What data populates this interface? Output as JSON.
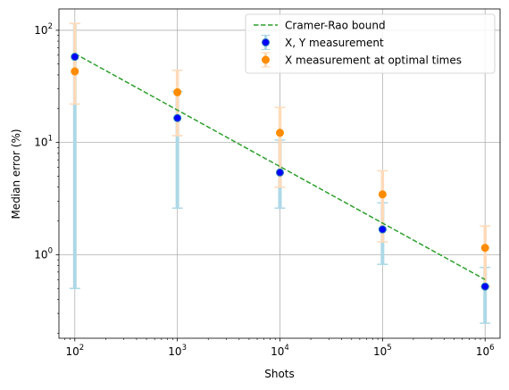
{
  "chart_data": {
    "type": "scatter",
    "xlabel": "Shots",
    "ylabel": "Median error (%)",
    "xscale": "log",
    "yscale": "log",
    "xlim": [
      70,
      1400000
    ],
    "ylim": [
      0.18,
      155
    ],
    "grid": true,
    "legend_position": "upper right",
    "x_ticks": [
      {
        "value": 100,
        "base": "10",
        "exp": "2"
      },
      {
        "value": 1000,
        "base": "10",
        "exp": "3"
      },
      {
        "value": 10000,
        "base": "10",
        "exp": "4"
      },
      {
        "value": 100000,
        "base": "10",
        "exp": "5"
      },
      {
        "value": 1000000,
        "base": "10",
        "exp": "6"
      }
    ],
    "y_ticks": [
      {
        "value": 1,
        "base": "10",
        "exp": "0"
      },
      {
        "value": 10,
        "base": "10",
        "exp": "1"
      },
      {
        "value": 100,
        "base": "10",
        "exp": "2"
      }
    ],
    "series": [
      {
        "name": "Cramer-Rao bound",
        "kind": "line",
        "style": "dashed",
        "color": "#2ca02c",
        "x": [
          100,
          1000000
        ],
        "y": [
          62,
          0.6
        ]
      },
      {
        "name": "X, Y measurement",
        "kind": "errorbar",
        "color": "#0000ff",
        "edge_color": "#1f77b4",
        "err_color": "#add8e6",
        "x": [
          100,
          1000,
          10000,
          100000,
          1000000
        ],
        "y": [
          58,
          16.5,
          5.4,
          1.68,
          0.52
        ],
        "y_low": [
          0.5,
          2.6,
          2.6,
          0.82,
          0.245
        ],
        "y_high": [
          115,
          28.5,
          10.5,
          2.9,
          0.77
        ]
      },
      {
        "name": "X measurement at optimal times",
        "kind": "errorbar",
        "color": "#ff8c00",
        "err_color": "#ffdab9",
        "x": [
          100,
          1000,
          10000,
          100000,
          1000000
        ],
        "y": [
          43,
          28,
          12.2,
          3.45,
          1.15
        ],
        "y_low": [
          22,
          11.5,
          4.0,
          1.3,
          0.52
        ],
        "y_high": [
          115,
          44,
          20.5,
          5.6,
          1.8
        ]
      }
    ]
  }
}
